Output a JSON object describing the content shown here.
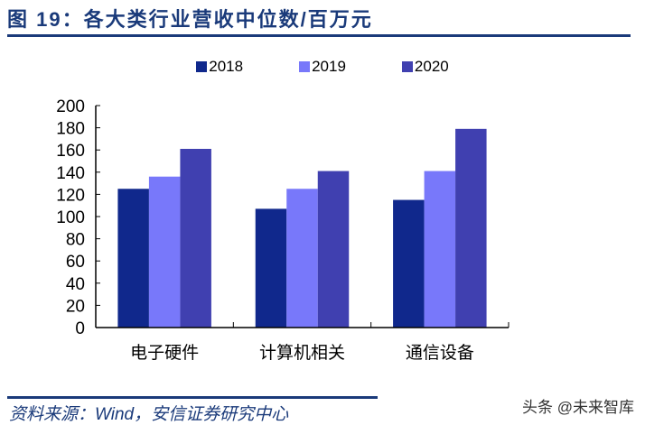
{
  "header": {
    "title": "图 19：各大类行业营收中位数/百万元"
  },
  "footer": {
    "source": "资料来源：Wind，安信证券研究中心",
    "watermark": "头条 @未来智库"
  },
  "chart_data": {
    "type": "bar",
    "title": "图 19：各大类行业营收中位数/百万元",
    "categories": [
      "电子硬件",
      "计算机相关",
      "通信设备"
    ],
    "series": [
      {
        "name": "2018",
        "color": "#10288c",
        "values": [
          125,
          107,
          115
        ]
      },
      {
        "name": "2019",
        "color": "#7878fa",
        "values": [
          136,
          125,
          141
        ]
      },
      {
        "name": "2020",
        "color": "#4040b0",
        "values": [
          161,
          141,
          179
        ]
      }
    ],
    "yticks": [
      "0",
      "20",
      "40",
      "60",
      "80",
      "100",
      "120",
      "140",
      "160",
      "180",
      "200"
    ],
    "ylim": [
      0,
      200
    ],
    "grid": false,
    "legend": "top-center"
  }
}
